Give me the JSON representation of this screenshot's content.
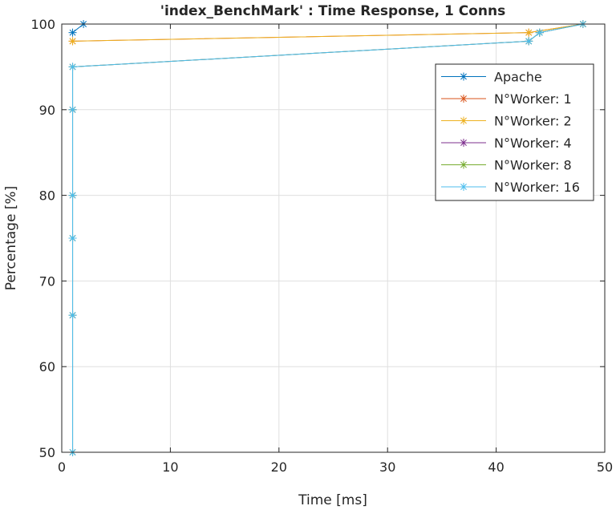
{
  "chart_data": {
    "type": "line",
    "title": "'index_BenchMark' : Time Response, 1 Conns",
    "xlabel": "Time [ms]",
    "ylabel": "Percentage [%]",
    "xlim": [
      0,
      50
    ],
    "ylim": [
      50,
      100
    ],
    "xticks": [
      0,
      10,
      20,
      30,
      40,
      50
    ],
    "yticks": [
      50,
      60,
      70,
      80,
      90,
      100
    ],
    "grid": true,
    "legend_position": "top-right",
    "series": [
      {
        "name": "Apache",
        "color": "#0072bd",
        "marker": "*",
        "points": [
          [
            1,
            99
          ],
          [
            2,
            100
          ]
        ]
      },
      {
        "name": "N°Worker: 1",
        "color": "#d95319",
        "marker": "*",
        "points": [
          [
            1,
            98
          ],
          [
            43,
            99
          ],
          [
            48,
            100
          ]
        ]
      },
      {
        "name": "N°Worker: 2",
        "color": "#edb120",
        "marker": "*",
        "points": [
          [
            1,
            98
          ],
          [
            43,
            99
          ],
          [
            48,
            100
          ]
        ]
      },
      {
        "name": "N°Worker: 4",
        "color": "#7e2f8e",
        "marker": "*",
        "points": [
          [
            1,
            50
          ],
          [
            1,
            66
          ],
          [
            1,
            75
          ],
          [
            1,
            80
          ],
          [
            1,
            90
          ],
          [
            1,
            95
          ],
          [
            43,
            98
          ],
          [
            44,
            99
          ],
          [
            48,
            100
          ]
        ]
      },
      {
        "name": "N°Worker: 8",
        "color": "#77ac30",
        "marker": "*",
        "points": [
          [
            1,
            50
          ],
          [
            1,
            66
          ],
          [
            1,
            75
          ],
          [
            1,
            80
          ],
          [
            1,
            90
          ],
          [
            1,
            95
          ],
          [
            43,
            98
          ],
          [
            44,
            99
          ],
          [
            48,
            100
          ]
        ]
      },
      {
        "name": "N°Worker: 16",
        "color": "#4dbeee",
        "marker": "*",
        "points": [
          [
            1,
            50
          ],
          [
            1,
            66
          ],
          [
            1,
            75
          ],
          [
            1,
            80
          ],
          [
            1,
            90
          ],
          [
            1,
            95
          ],
          [
            43,
            98
          ],
          [
            44,
            99
          ],
          [
            48,
            100
          ]
        ]
      }
    ]
  }
}
